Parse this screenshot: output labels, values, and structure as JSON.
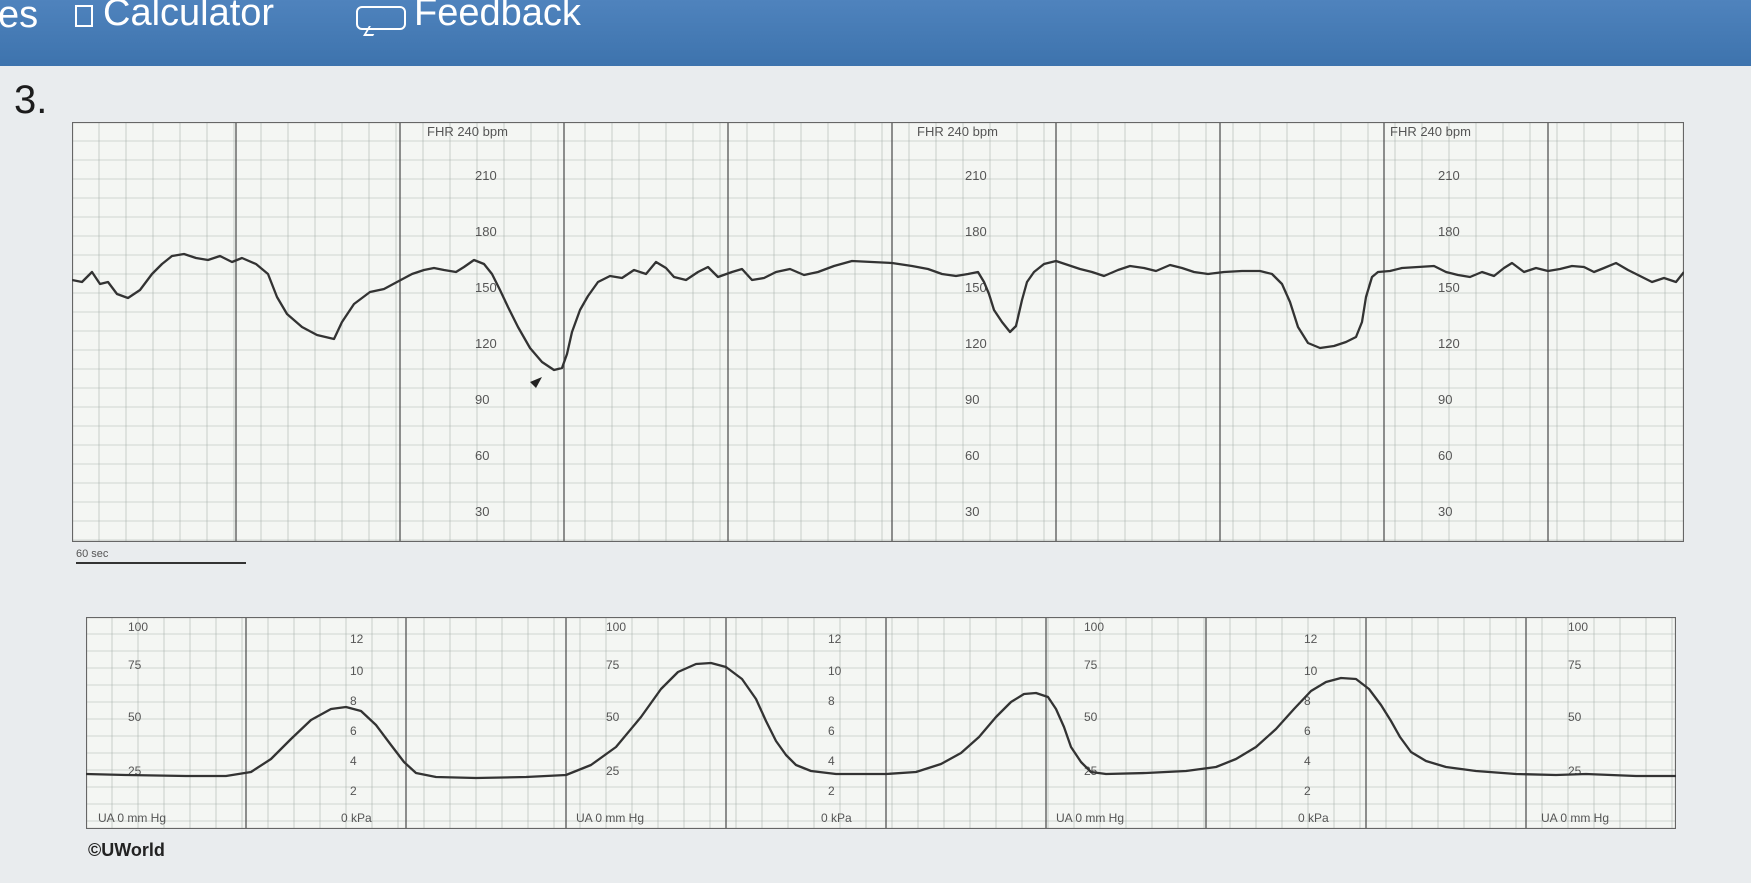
{
  "toolbar": {
    "left_fragment": "es",
    "calculator_label": "Calculator",
    "feedback_label": "Feedback"
  },
  "question": {
    "number": "3."
  },
  "fhr_strip": {
    "header_labels": [
      "FHR 240 bpm",
      "FHR 240 bpm",
      "FHR 240 bpm"
    ],
    "scale_ticks": [
      "210",
      "180",
      "150",
      "120",
      "90",
      "60",
      "30"
    ],
    "line_color": "#333333",
    "grid_color": "#a9b4ae"
  },
  "time_scale": {
    "label": "60 sec"
  },
  "ua_strip": {
    "mmhg_ticks": [
      "100",
      "75",
      "50",
      "25"
    ],
    "kpa_ticks": [
      "12",
      "10",
      "8",
      "6",
      "4",
      "2"
    ],
    "footer_mmhg": "UA 0 mm Hg",
    "footer_kpa": "0 kPa"
  },
  "copyright": "©UWorld",
  "colors": {
    "toolbar_blue": "#4579b4",
    "page_bg": "#e9ecee",
    "chart_bg": "#f4f6f3"
  }
}
